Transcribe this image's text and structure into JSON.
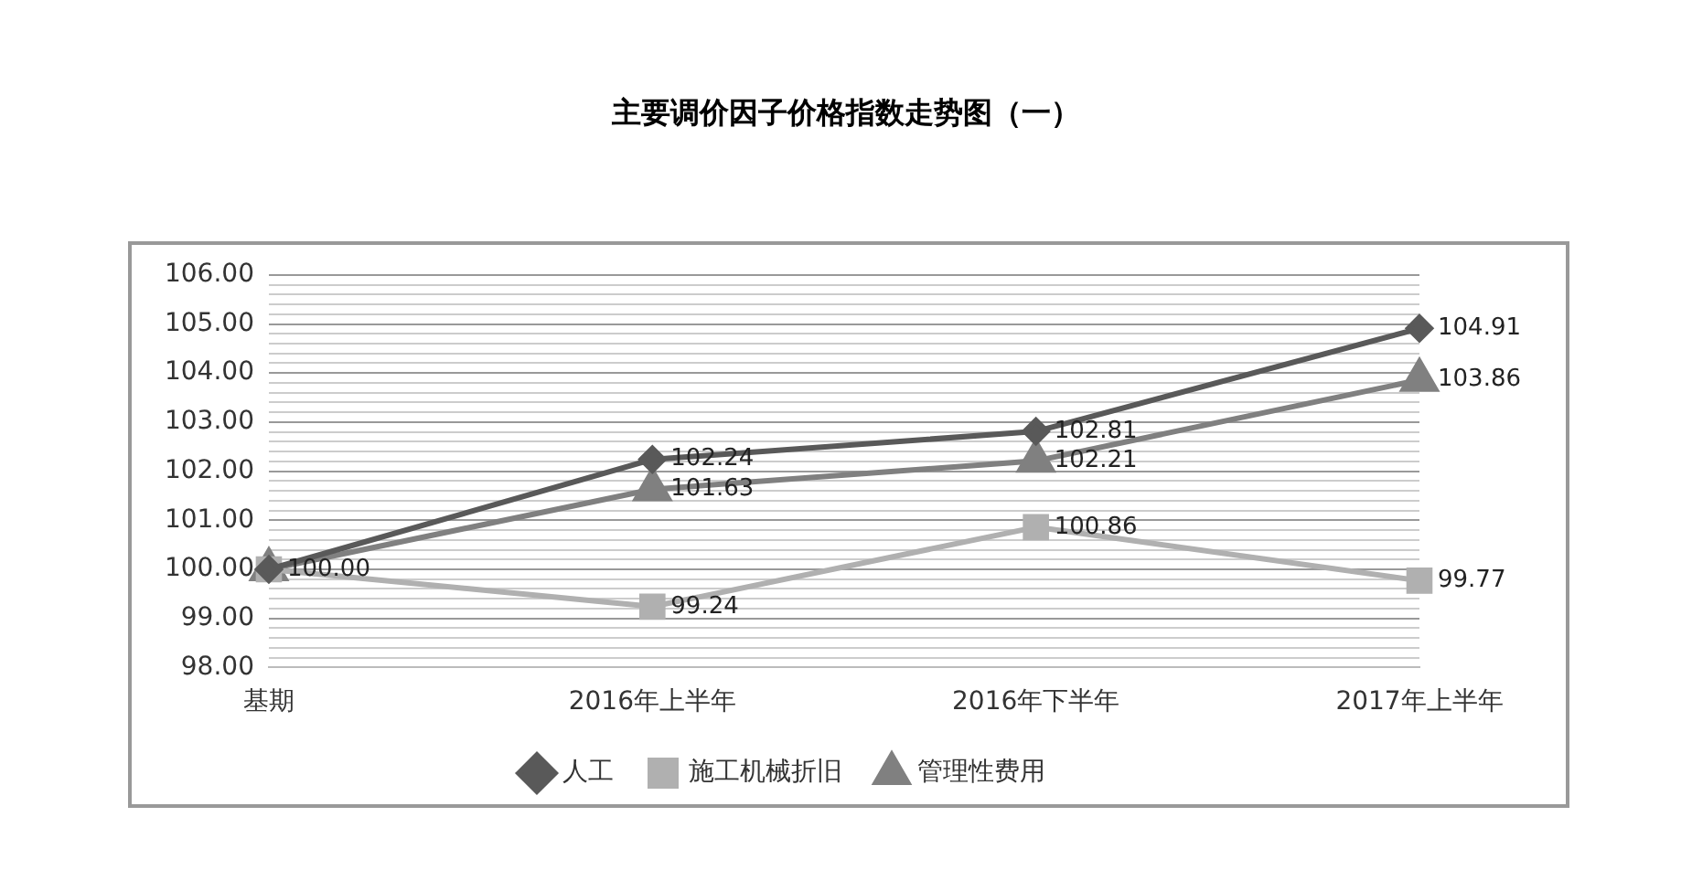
{
  "chart_data": {
    "type": "line",
    "title": "主要调价因子价格指数走势图（一）",
    "categories": [
      "基期",
      "2016年上半年",
      "2016年下半年",
      "2017年上半年"
    ],
    "series": [
      {
        "name": "人工",
        "color": "#595959",
        "marker": "diamond",
        "values": [
          100,
          102.24,
          102.81,
          104.91
        ],
        "value_labels": [
          "100.00",
          "102.24",
          "102.81",
          "104.91"
        ]
      },
      {
        "name": "施工机械折旧",
        "color": "#b0b0b0",
        "marker": "square",
        "values": [
          100,
          99.24,
          100.86,
          99.77
        ],
        "value_labels": [
          null,
          "99.24",
          "100.86",
          "99.77"
        ]
      },
      {
        "name": "管理性费用",
        "color": "#808080",
        "marker": "triangle",
        "values": [
          100,
          101.63,
          102.21,
          103.86
        ],
        "value_labels": [
          null,
          "101.63",
          "102.21",
          "103.86"
        ]
      }
    ],
    "ylim": [
      98,
      106
    ],
    "yticks": [
      {
        "value": 98,
        "label": "98.00"
      },
      {
        "value": 98.2,
        "label": null
      },
      {
        "value": 98.4,
        "label": null
      },
      {
        "value": 98.6,
        "label": null
      },
      {
        "value": 98.8,
        "label": null
      },
      {
        "value": 99,
        "label": "99.00"
      },
      {
        "value": 99.2,
        "label": null
      },
      {
        "value": 99.4,
        "label": null
      },
      {
        "value": 99.6,
        "label": null
      },
      {
        "value": 99.8,
        "label": null
      },
      {
        "value": 100,
        "label": "100.00"
      },
      {
        "value": 100.2,
        "label": null
      },
      {
        "value": 100.4,
        "label": null
      },
      {
        "value": 100.6,
        "label": null
      },
      {
        "value": 100.8,
        "label": null
      },
      {
        "value": 101,
        "label": "101.00"
      },
      {
        "value": 101.2,
        "label": null
      },
      {
        "value": 101.4,
        "label": null
      },
      {
        "value": 101.6,
        "label": null
      },
      {
        "value": 101.8,
        "label": null
      },
      {
        "value": 102,
        "label": "102.00"
      },
      {
        "value": 102.2,
        "label": null
      },
      {
        "value": 102.4,
        "label": null
      },
      {
        "value": 102.6,
        "label": null
      },
      {
        "value": 102.8,
        "label": null
      },
      {
        "value": 103,
        "label": "103.00"
      },
      {
        "value": 103.2,
        "label": null
      },
      {
        "value": 103.4,
        "label": null
      },
      {
        "value": 103.6,
        "label": null
      },
      {
        "value": 103.8,
        "label": null
      },
      {
        "value": 104,
        "label": "104.00"
      },
      {
        "value": 104.2,
        "label": null
      },
      {
        "value": 104.4,
        "label": null
      },
      {
        "value": 104.6,
        "label": null
      },
      {
        "value": 104.8,
        "label": null
      },
      {
        "value": 105,
        "label": "105.00"
      },
      {
        "value": 105.2,
        "label": null
      },
      {
        "value": 105.4,
        "label": null
      },
      {
        "value": 105.6,
        "label": null
      },
      {
        "value": 105.8,
        "label": null
      },
      {
        "value": 106,
        "label": "106.00"
      }
    ],
    "grid": "y",
    "legend": "bottom",
    "line_style": "solid"
  }
}
